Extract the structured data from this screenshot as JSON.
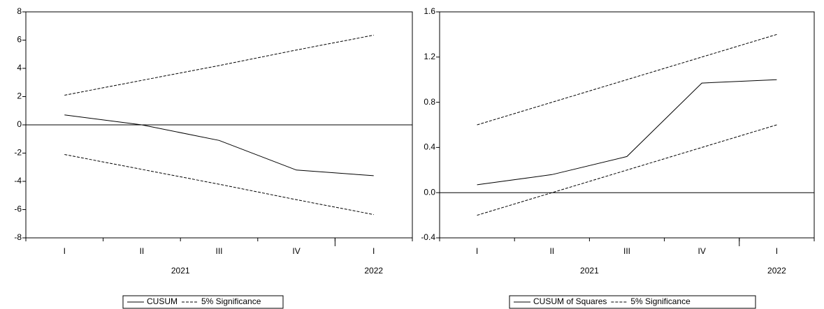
{
  "chart_data": [
    {
      "type": "line",
      "categories": [
        "I",
        "II",
        "III",
        "IV",
        "I"
      ],
      "years": [
        {
          "label": "2021",
          "start_index": 0,
          "end_index": 3
        },
        {
          "label": "2022",
          "start_index": 4,
          "end_index": 4
        }
      ],
      "series": [
        {
          "name": "CUSUM",
          "style": "solid",
          "values": [
            0.7,
            0.0,
            -1.1,
            -3.2,
            -3.6
          ]
        },
        {
          "name": "Upper band",
          "style": "dashed",
          "values": [
            2.1,
            3.15,
            4.2,
            5.3,
            6.35
          ]
        },
        {
          "name": "Lower band",
          "style": "dashed",
          "values": [
            -2.1,
            -3.15,
            -4.2,
            -5.3,
            -6.35
          ]
        }
      ],
      "ylim": [
        -8,
        8
      ],
      "yticks": [
        -8,
        -6,
        -4,
        -2,
        0,
        2,
        4,
        6,
        8
      ],
      "ytick_labels": [
        "-8",
        "-6",
        "-4",
        "-2",
        "0",
        "2",
        "4",
        "6",
        "8"
      ],
      "zero_line": true,
      "legend": {
        "placement": "bottom-center",
        "entries": [
          {
            "label": "CUSUM",
            "style": "solid"
          },
          {
            "label": "5% Significance",
            "style": "dashed"
          }
        ]
      }
    },
    {
      "type": "line",
      "categories": [
        "I",
        "II",
        "III",
        "IV",
        "I"
      ],
      "years": [
        {
          "label": "2021",
          "start_index": 0,
          "end_index": 3
        },
        {
          "label": "2022",
          "start_index": 4,
          "end_index": 4
        }
      ],
      "series": [
        {
          "name": "CUSUM of Squares",
          "style": "solid",
          "values": [
            0.07,
            0.16,
            0.32,
            0.97,
            1.0
          ]
        },
        {
          "name": "Upper band",
          "style": "dashed",
          "values": [
            0.6,
            0.8,
            1.0,
            1.2,
            1.4
          ]
        },
        {
          "name": "Lower band",
          "style": "dashed",
          "values": [
            -0.2,
            0.0,
            0.2,
            0.4,
            0.6
          ]
        }
      ],
      "ylim": [
        -0.4,
        1.6
      ],
      "yticks": [
        -0.4,
        0.0,
        0.4,
        0.8,
        1.2,
        1.6
      ],
      "ytick_labels": [
        "-0.4",
        "0.0",
        "0.4",
        "0.8",
        "1.2",
        "1.6"
      ],
      "zero_line": true,
      "legend": {
        "placement": "bottom-center",
        "entries": [
          {
            "label": "CUSUM of Squares",
            "style": "solid"
          },
          {
            "label": "5% Significance",
            "style": "dashed"
          }
        ]
      }
    }
  ]
}
